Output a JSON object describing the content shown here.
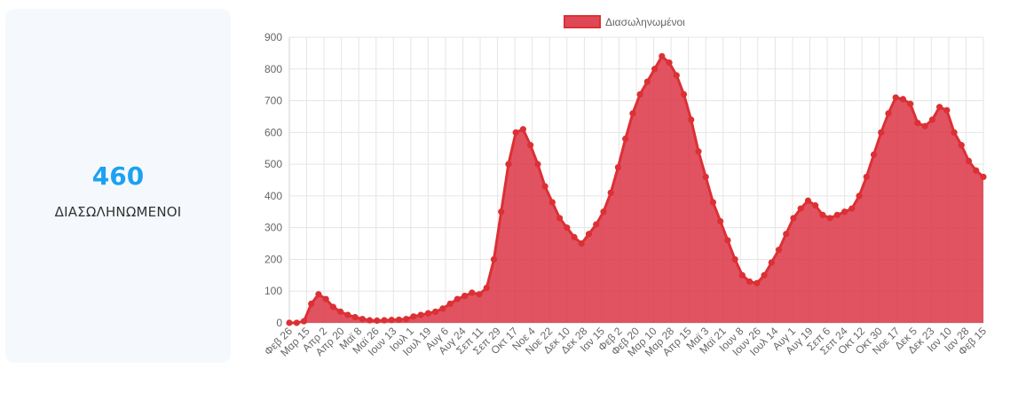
{
  "stat": {
    "value": "460",
    "label": "ΔΙΑΣΩΛΗΝΩΜΕΝΟΙ"
  },
  "colors": {
    "accent": "#1da1f2",
    "series_fill": "#dc3545",
    "series_border": "#dc3035"
  },
  "chart_data": {
    "type": "area",
    "legend": {
      "position": "top",
      "entries": [
        "Διασωληνωμένοι"
      ]
    },
    "ylim": [
      0,
      900
    ],
    "yticks": [
      0,
      100,
      200,
      300,
      400,
      500,
      600,
      700,
      800,
      900
    ],
    "xlabels": [
      "Φεβ 26",
      "Μαρ 15",
      "Απρ 2",
      "Απρ 20",
      "Μαϊ 8",
      "Μαϊ 26",
      "Ιουν 13",
      "Ιουλ 1",
      "Ιουλ 19",
      "Αυγ 6",
      "Αυγ 24",
      "Σεπ 11",
      "Σεπ 29",
      "Οκτ 17",
      "Νοε 4",
      "Νοε 22",
      "Δεκ 10",
      "Δεκ 28",
      "Ιαν 15",
      "Φεβ 2",
      "Φεβ 20",
      "Μαρ 10",
      "Μαρ 28",
      "Απρ 15",
      "Μαϊ 3",
      "Μαϊ 21",
      "Ιουν 8",
      "Ιουν 26",
      "Ιουλ 14",
      "Αυγ 1",
      "Αυγ 19",
      "Σεπ 6",
      "Σεπ 24",
      "Οκτ 12",
      "Οκτ 30",
      "Νοε 17",
      "Δεκ 5",
      "Δεκ 23",
      "Ιαν 10",
      "Ιαν 28",
      "Φεβ 15"
    ],
    "grid": true,
    "series": [
      {
        "name": "Διασωληνωμένοι",
        "values": [
          0,
          0,
          5,
          60,
          90,
          75,
          50,
          35,
          25,
          18,
          12,
          8,
          7,
          8,
          9,
          10,
          12,
          20,
          25,
          30,
          35,
          45,
          60,
          75,
          85,
          95,
          90,
          110,
          200,
          350,
          500,
          600,
          610,
          560,
          500,
          430,
          380,
          330,
          300,
          270,
          250,
          280,
          310,
          350,
          410,
          490,
          580,
          660,
          720,
          760,
          800,
          840,
          820,
          780,
          720,
          640,
          540,
          460,
          380,
          320,
          260,
          200,
          150,
          130,
          125,
          150,
          190,
          230,
          280,
          330,
          360,
          385,
          370,
          340,
          330,
          340,
          350,
          360,
          400,
          460,
          530,
          600,
          660,
          710,
          705,
          690,
          630,
          620,
          640,
          680,
          670,
          600,
          560,
          510,
          480,
          460
        ]
      }
    ]
  }
}
